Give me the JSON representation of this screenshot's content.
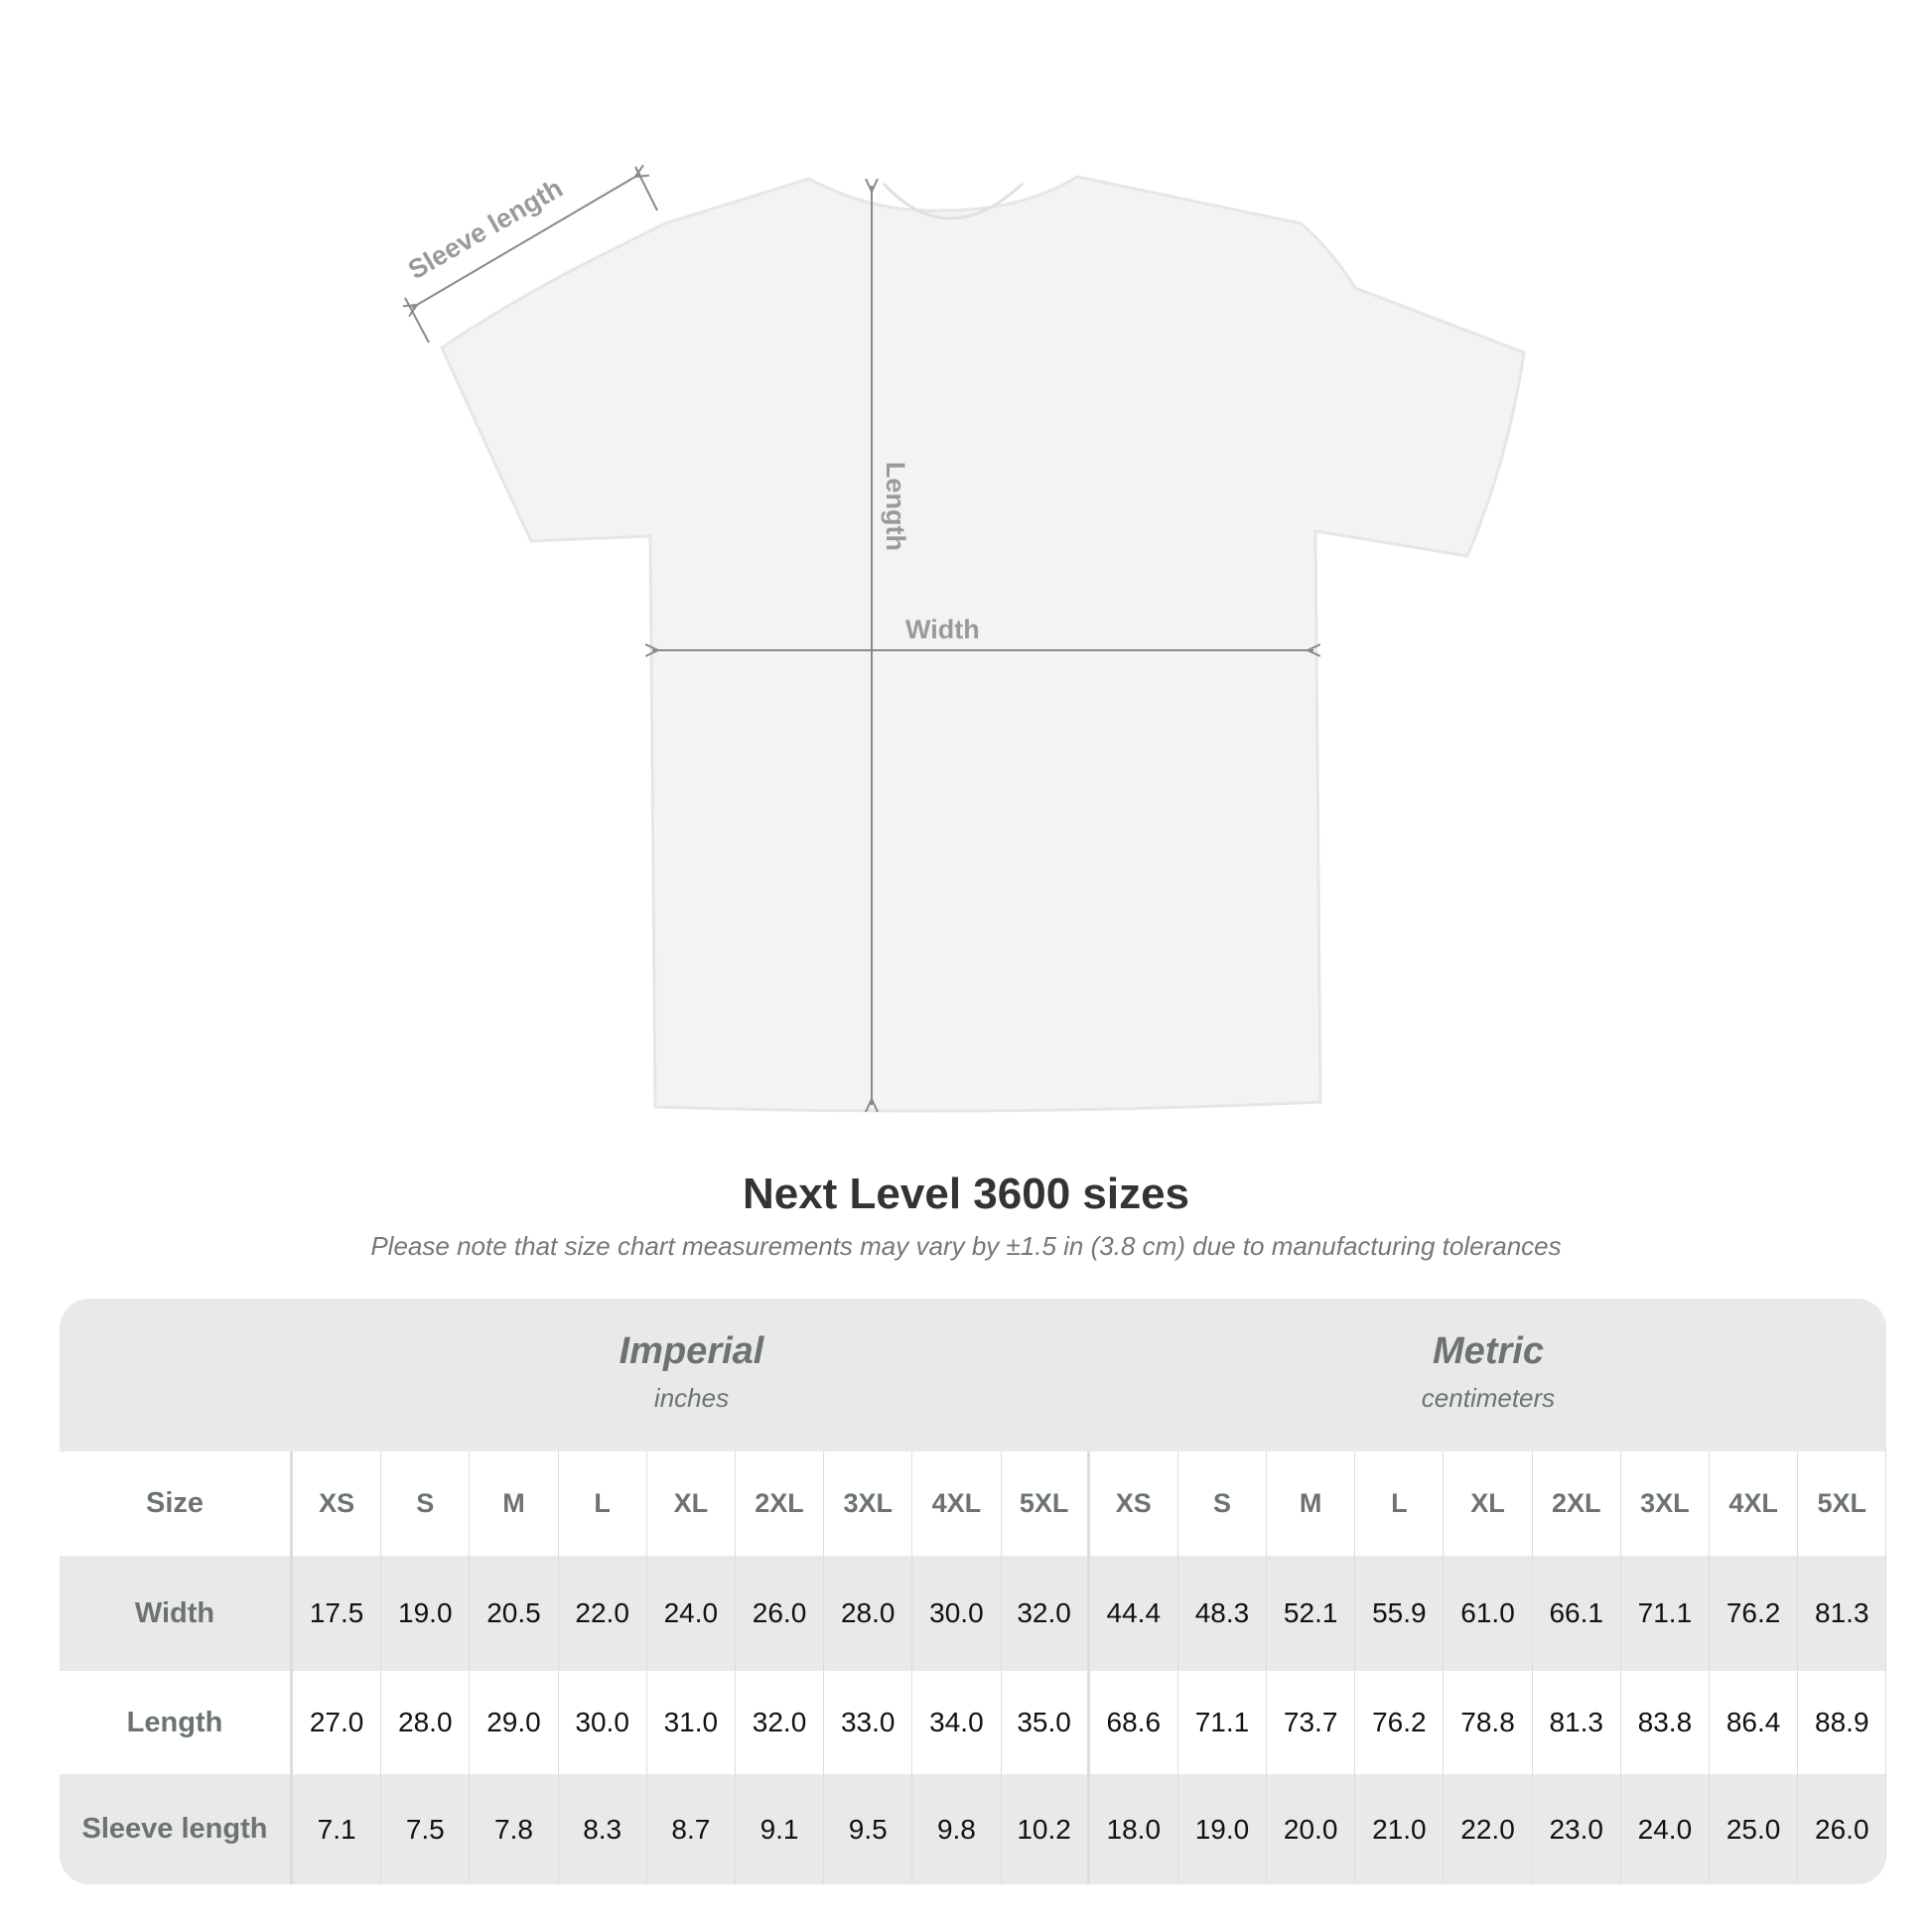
{
  "diagram": {
    "labels": {
      "sleeve": "Sleeve length",
      "length": "Length",
      "width": "Width"
    },
    "colors": {
      "shirt": "#f3f3f3",
      "arrow": "#8a8a8a",
      "label": "#9a9a9a"
    }
  },
  "title": "Next Level 3600 sizes",
  "subtitle": "Please note that size chart measurements may vary by ±1.5 in (3.8 cm) due to manufacturing tolerances",
  "table": {
    "imperial": {
      "name": "Imperial",
      "unit": "inches"
    },
    "metric": {
      "name": "Metric",
      "unit": "centimeters"
    },
    "rows": [
      {
        "label": "Size",
        "imperial": [
          "XS",
          "S",
          "M",
          "L",
          "XL",
          "2XL",
          "3XL",
          "4XL",
          "5XL"
        ],
        "metric": [
          "XS",
          "S",
          "M",
          "L",
          "XL",
          "2XL",
          "3XL",
          "4XL",
          "5XL"
        ]
      },
      {
        "label": "Width",
        "imperial": [
          "17.5",
          "19.0",
          "20.5",
          "22.0",
          "24.0",
          "26.0",
          "28.0",
          "30.0",
          "32.0"
        ],
        "metric": [
          "44.4",
          "48.3",
          "52.1",
          "55.9",
          "61.0",
          "66.1",
          "71.1",
          "76.2",
          "81.3"
        ]
      },
      {
        "label": "Length",
        "imperial": [
          "27.0",
          "28.0",
          "29.0",
          "30.0",
          "31.0",
          "32.0",
          "33.0",
          "34.0",
          "35.0"
        ],
        "metric": [
          "68.6",
          "71.1",
          "73.7",
          "76.2",
          "78.8",
          "81.3",
          "83.8",
          "86.4",
          "88.9"
        ]
      },
      {
        "label": "Sleeve length",
        "imperial": [
          "7.1",
          "7.5",
          "7.8",
          "8.3",
          "8.7",
          "9.1",
          "9.5",
          "9.8",
          "10.2"
        ],
        "metric": [
          "18.0",
          "19.0",
          "20.0",
          "21.0",
          "22.0",
          "23.0",
          "24.0",
          "25.0",
          "26.0"
        ]
      }
    ]
  }
}
